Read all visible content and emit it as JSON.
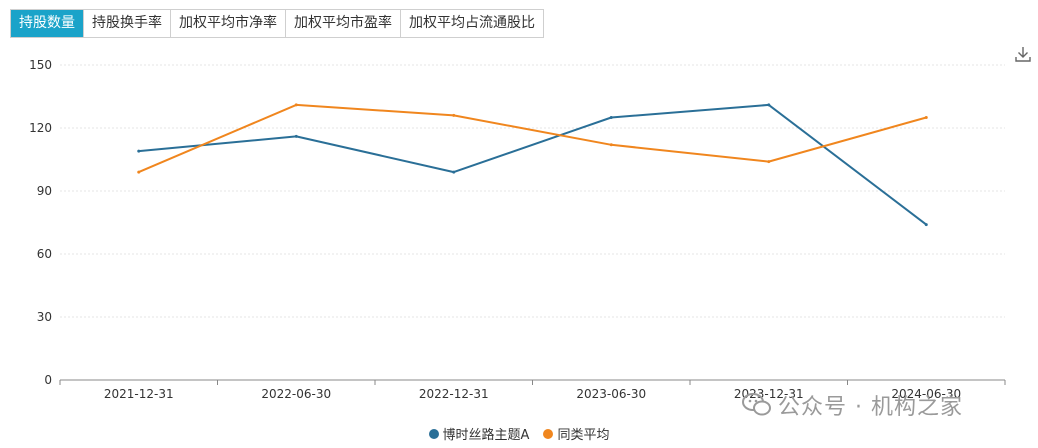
{
  "tabs": [
    {
      "label": "持股数量",
      "active": true
    },
    {
      "label": "持股换手率",
      "active": false
    },
    {
      "label": "加权平均市净率",
      "active": false
    },
    {
      "label": "加权平均市盈率",
      "active": false
    },
    {
      "label": "加权平均占流通股比",
      "active": false
    }
  ],
  "download_icon": "download-icon",
  "watermark": {
    "text": "公众号 · 机构之家",
    "icon": "wechat-icon"
  },
  "colors": {
    "accent": "#1aa3c9",
    "series_a": "#2a6f97",
    "series_b": "#f0861e"
  },
  "chart_data": {
    "type": "line",
    "categories": [
      "2021-12-31",
      "2022-06-30",
      "2022-12-31",
      "2023-06-30",
      "2023-12-31",
      "2024-06-30"
    ],
    "series": [
      {
        "name": "博时丝路主题A",
        "values": [
          109,
          116,
          99,
          125,
          131,
          74
        ]
      },
      {
        "name": "同类平均",
        "values": [
          99,
          131,
          126,
          112,
          104,
          125
        ]
      }
    ],
    "yticks": [
      "150",
      "120",
      "90",
      "60",
      "30",
      "0"
    ],
    "ylim": [
      0,
      150
    ],
    "grid": true,
    "legend": "bottom-center"
  }
}
